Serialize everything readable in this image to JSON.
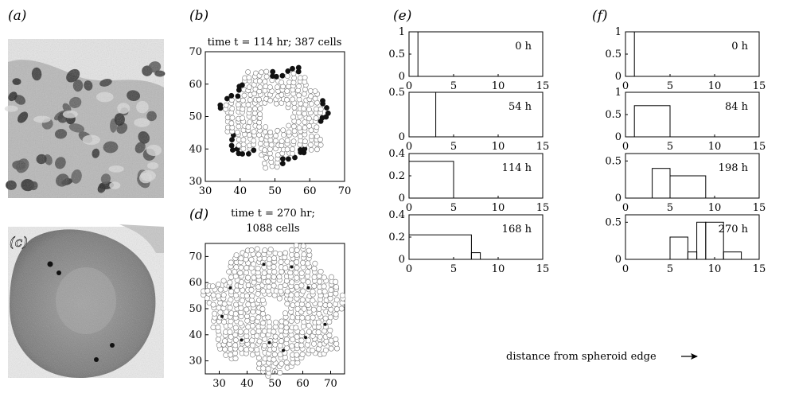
{
  "panels": {
    "a": {
      "label": "(a)"
    },
    "b": {
      "label": "(b)"
    },
    "c": {
      "label": "(c)"
    },
    "d": {
      "label": "(d)"
    },
    "e": {
      "label": "(e)"
    },
    "f": {
      "label": "(f)"
    }
  },
  "chart_data": [
    {
      "id": "b",
      "type": "scatter",
      "title": "time t = 114 hr; 387 cells",
      "xlim": [
        30,
        70
      ],
      "ylim": [
        30,
        70
      ],
      "xticks": [
        30,
        40,
        50,
        60,
        70
      ],
      "yticks": [
        30,
        40,
        50,
        60,
        70
      ],
      "center": [
        50,
        50
      ],
      "inner_radius": 4,
      "outer_radius": 15,
      "marker_colors": {
        "interior": "#ffffff",
        "edge": "#111111"
      }
    },
    {
      "id": "d",
      "type": "scatter",
      "title_lines": [
        "time t = 270 hr;",
        "1088 cells"
      ],
      "xlim": [
        25,
        75
      ],
      "ylim": [
        25,
        75
      ],
      "xticks": [
        30,
        40,
        50,
        60,
        70
      ],
      "yticks": [
        30,
        40,
        50,
        60,
        70
      ],
      "center": [
        50,
        50
      ],
      "inner_radius": 4,
      "outer_radius": 24,
      "marked_cells": [
        [
          46,
          67
        ],
        [
          56,
          66
        ],
        [
          34,
          58
        ],
        [
          62,
          58
        ],
        [
          31,
          47
        ],
        [
          68,
          44
        ],
        [
          38,
          38
        ],
        [
          48,
          37
        ],
        [
          61,
          39
        ],
        [
          53,
          34
        ]
      ],
      "marker_colors": {
        "interior": "#ffffff",
        "edge": "#555555",
        "marked": "#111111"
      }
    },
    {
      "id": "e",
      "type": "histogram",
      "xlabel": "distance from spheroid edge",
      "subplots": [
        {
          "annotation": "0 h",
          "xlim": [
            0,
            15
          ],
          "ylim": [
            0,
            1
          ],
          "yticks": [
            "0",
            "0.5",
            "1"
          ],
          "xticks": [
            0,
            5,
            10,
            15
          ],
          "edges": [
            0,
            1
          ],
          "values": [
            1
          ]
        },
        {
          "annotation": "54 h",
          "xlim": [
            0,
            15
          ],
          "ylim": [
            0,
            0.5
          ],
          "yticks": [
            "0",
            "0.5"
          ],
          "xticks": [
            0,
            5,
            10,
            15
          ],
          "edges": [
            0,
            3
          ],
          "values": [
            0.5
          ]
        },
        {
          "annotation": "114 h",
          "xlim": [
            0,
            15
          ],
          "ylim": [
            0,
            0.4
          ],
          "yticks": [
            "0",
            "0.2",
            "0.4"
          ],
          "xticks": [
            0,
            5,
            10,
            15
          ],
          "edges": [
            0,
            5
          ],
          "values": [
            0.33
          ]
        },
        {
          "annotation": "168 h",
          "xlim": [
            0,
            15
          ],
          "ylim": [
            0,
            0.4
          ],
          "yticks": [
            "0",
            "0.2",
            "0.4"
          ],
          "xticks": [
            0,
            5,
            10,
            15
          ],
          "edges": [
            0,
            7,
            8
          ],
          "values": [
            0.22,
            0.06
          ]
        }
      ]
    },
    {
      "id": "f",
      "type": "histogram",
      "subplots": [
        {
          "annotation": "0 h",
          "xlim": [
            0,
            15
          ],
          "ylim": [
            0,
            1
          ],
          "yticks": [
            "0",
            "0.5",
            "1"
          ],
          "xticks": [
            0,
            5,
            10,
            15
          ],
          "edges": [
            0,
            1
          ],
          "values": [
            1
          ]
        },
        {
          "annotation": "84 h",
          "xlim": [
            0,
            15
          ],
          "ylim": [
            0,
            1
          ],
          "yticks": [
            "0",
            "0.5",
            "1"
          ],
          "xticks": [
            0,
            5,
            10,
            15
          ],
          "edges": [
            1,
            5
          ],
          "values": [
            0.7
          ]
        },
        {
          "annotation": "198 h",
          "xlim": [
            0,
            15
          ],
          "ylim": [
            0,
            0.6
          ],
          "yticks": [
            "0",
            "0.5"
          ],
          "xticks": [
            0,
            5,
            10,
            15
          ],
          "edges": [
            3,
            5,
            9
          ],
          "values": [
            0.4,
            0.3
          ]
        },
        {
          "annotation": "270 h",
          "xlim": [
            0,
            15
          ],
          "ylim": [
            0,
            0.6
          ],
          "yticks": [
            "0",
            "0.5"
          ],
          "xticks": [
            0,
            5,
            10,
            15
          ],
          "edges": [
            5,
            7,
            8,
            9,
            11,
            13
          ],
          "values": [
            0.3,
            0.1,
            0.5,
            0.5,
            0.1
          ]
        }
      ]
    }
  ]
}
